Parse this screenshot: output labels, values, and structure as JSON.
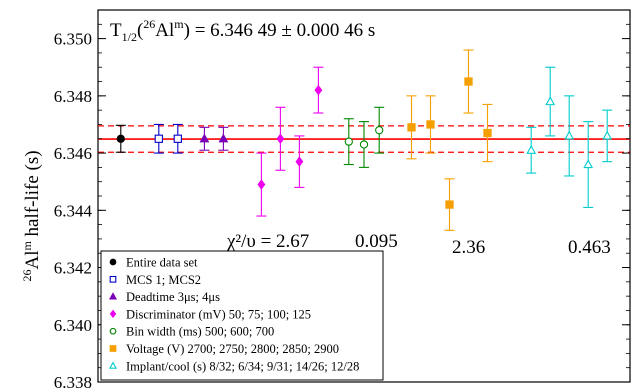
{
  "chart_data": {
    "type": "scatter",
    "title": "",
    "ylabel": {
      "main": "Al",
      "pre_sup": "26",
      "post_sup": "m",
      "suffix": " half-life (s)"
    },
    "xlabel": "",
    "ylim": [
      6.338,
      6.351
    ],
    "yticks": [
      "6.338",
      "6.340",
      "6.342",
      "6.344",
      "6.346",
      "6.348",
      "6.350"
    ],
    "grid": false,
    "legend_position": "bottom-left",
    "annotation": {
      "prefix": "T",
      "sub": "1/2",
      "open": "(",
      "sup_iso": "26",
      "element": "Al",
      "sup_state": "m",
      "value": ") = 6.346 49 ± 0.000 46 s"
    },
    "reference": {
      "value": 6.34649,
      "uncertainty": 0.00046,
      "color": "#ff0000"
    },
    "chi2": {
      "label": "χ²/υ = 2.67",
      "values": [
        "0.095",
        "2.36",
        "0.463"
      ]
    },
    "series": [
      {
        "name": "Entire data set",
        "color": "#000000",
        "marker": "circle-filled",
        "x": [
          1.0
        ],
        "y": [
          6.3465
        ],
        "err": [
          0.00047
        ]
      },
      {
        "name": "MCS 1; MCS2",
        "color": "#0000cc",
        "marker": "square-open",
        "x": [
          2.0,
          2.5
        ],
        "y": [
          6.3465,
          6.3465
        ],
        "err": [
          0.0005,
          0.0005
        ]
      },
      {
        "name": "Deadtime 3μs; 4μs",
        "color": "#7a00b8",
        "marker": "triangle-filled",
        "x": [
          3.2,
          3.7
        ],
        "y": [
          6.3465,
          6.3465
        ],
        "err": [
          0.0004,
          0.0004
        ]
      },
      {
        "name": "Discriminator (mV) 50; 75; 100; 125",
        "color": "#ee00ee",
        "marker": "diamond-filled",
        "x": [
          4.7,
          5.2,
          5.7,
          6.2
        ],
        "y": [
          6.3449,
          6.3465,
          6.3457,
          6.3482
        ],
        "err": [
          0.0011,
          0.0011,
          0.0009,
          0.0008
        ]
      },
      {
        "name": "Bin width (ms) 500; 600; 700",
        "color": "#008800",
        "marker": "circle-open",
        "x": [
          7.0,
          7.4,
          7.8
        ],
        "y": [
          6.3464,
          6.3463,
          6.3468
        ],
        "err": [
          0.0008,
          0.0008,
          0.0008
        ]
      },
      {
        "name": "Voltage (V) 2700; 2750; 2800; 2850; 2900",
        "color": "#f5a000",
        "marker": "square-filled",
        "x": [
          8.65,
          9.15,
          9.65,
          10.15,
          10.65
        ],
        "y": [
          6.3469,
          6.347,
          6.3442,
          6.3485,
          6.3467
        ],
        "err": [
          0.0011,
          0.001,
          0.0009,
          0.0011,
          0.001
        ]
      },
      {
        "name": "Implant/cool (s) 8/32; 6/34; 9/31; 14/26; 12/28",
        "color": "#00cccc",
        "marker": "triangle-open",
        "x": [
          11.8,
          12.3,
          12.8,
          13.3,
          13.8
        ],
        "y": [
          6.3461,
          6.3478,
          6.3466,
          6.3456,
          6.3466
        ],
        "err": [
          0.0008,
          0.0012,
          0.0014,
          0.0015,
          0.0009
        ]
      }
    ]
  }
}
